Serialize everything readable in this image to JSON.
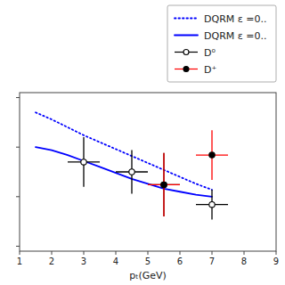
{
  "chart_data": {
    "type": "line",
    "x_label": "pₜ(GeV)",
    "xlim": [
      1,
      9
    ],
    "ylim": [
      -0.05,
      1.55
    ],
    "xticks": [
      1,
      2,
      3,
      4,
      5,
      6,
      7,
      8,
      9
    ],
    "yticks": [
      0,
      0.5,
      1.0,
      1.5
    ],
    "tick_labels": "x",
    "grid": false,
    "legend": "upper right",
    "series": [
      {
        "name": "DQRM ε =0..",
        "type": "line",
        "color": "blue",
        "line_style": "dotted",
        "x": [
          1.5,
          2.0,
          2.5,
          3.0,
          3.5,
          4.0,
          4.5,
          5.0,
          5.5,
          6.0,
          6.5,
          7.0
        ],
        "values": [
          1.35,
          1.28,
          1.2,
          1.12,
          1.05,
          0.98,
          0.91,
          0.84,
          0.77,
          0.7,
          0.63,
          0.57
        ]
      },
      {
        "name": "DQRM ε =0..",
        "type": "line",
        "color": "blue",
        "line_style": "solid",
        "x": [
          1.5,
          2.0,
          2.5,
          3.0,
          3.5,
          4.0,
          4.5,
          5.0,
          5.5,
          6.0,
          6.5,
          7.0
        ],
        "values": [
          1.0,
          0.97,
          0.92,
          0.86,
          0.8,
          0.74,
          0.68,
          0.63,
          0.58,
          0.55,
          0.52,
          0.5
        ]
      },
      {
        "name": "D⁰",
        "type": "scatter",
        "color": "black",
        "marker": "hollow",
        "x": [
          3.0,
          4.5,
          5.5,
          7.0
        ],
        "values": [
          0.85,
          0.75,
          0.62,
          0.42
        ],
        "yerr_low": [
          0.25,
          0.22,
          0.32,
          0.15
        ],
        "yerr_high": [
          0.25,
          0.22,
          0.32,
          0.15
        ],
        "xerr": [
          0.5,
          0.5,
          0.5,
          0.5
        ]
      },
      {
        "name": "D⁺",
        "type": "scatter",
        "color": "red",
        "marker": "circle",
        "x": [
          5.5,
          7.0
        ],
        "values": [
          0.62,
          0.92
        ],
        "yerr_low": [
          0.32,
          0.25
        ],
        "yerr_high": [
          0.32,
          0.25
        ],
        "xerr": [
          0.5,
          0.5
        ]
      }
    ]
  }
}
